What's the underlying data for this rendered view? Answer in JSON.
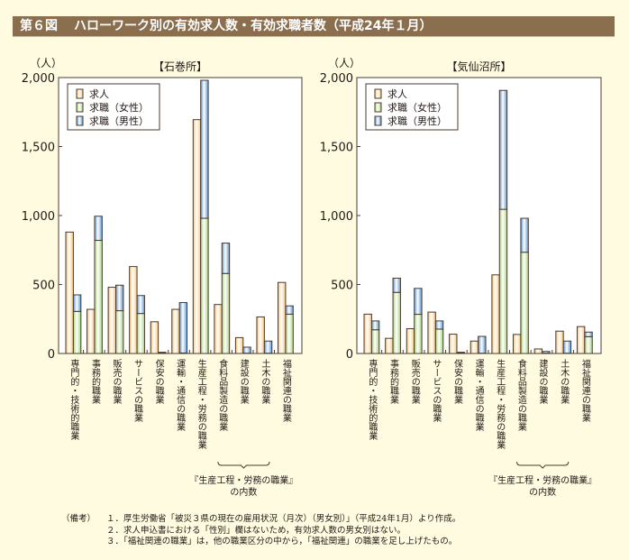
{
  "header": {
    "figure_no": "第６図",
    "title": "ハローワーク別の有効求人数・有効求職者数（平成24年１月）"
  },
  "colors": {
    "header_bg": "#8a6e4e",
    "jobs": "#fbc77a",
    "female": "#a9d67c",
    "male": "#5b97d4"
  },
  "chart_data": [
    {
      "type": "bar",
      "stacked_series": [
        "求職（女性）",
        "求職（男性）"
      ],
      "title": "【石巻所】",
      "ylabel": "（人）",
      "ylim": [
        0,
        2000
      ],
      "yticks": [
        "0",
        "500",
        "1,000",
        "1,500",
        "2,000"
      ],
      "legend": [
        "求人",
        "求職（女性）",
        "求職（男性）"
      ],
      "legend_position": "top-left",
      "categories": [
        "専門的・技術的職業",
        "事務的職業",
        "販売の職業",
        "サービスの職業",
        "保安の職業",
        "運輸・通信の職業",
        "生産工程・労務の職業",
        "食料品製造の職業",
        "建設の職業",
        "土木の職業",
        "福祉関連の職業"
      ],
      "series": [
        {
          "name": "求人",
          "values": [
            880,
            320,
            480,
            630,
            230,
            320,
            1695,
            355,
            115,
            265,
            515
          ]
        },
        {
          "name": "求職（女性）",
          "values": [
            305,
            820,
            310,
            290,
            3,
            4,
            980,
            580,
            2,
            2,
            285
          ]
        },
        {
          "name": "求職（男性）",
          "values": [
            120,
            175,
            185,
            130,
            6,
            365,
            1000,
            220,
            44,
            88,
            60
          ]
        }
      ],
      "brace_label": [
        "『生産工程・労務の職業』",
        "の内数"
      ]
    },
    {
      "type": "bar",
      "stacked_series": [
        "求職（女性）",
        "求職（男性）"
      ],
      "title": "【気仙沼所】",
      "ylabel": "（人）",
      "ylim": [
        0,
        2000
      ],
      "yticks": [
        "0",
        "500",
        "1,000",
        "1,500",
        "2,000"
      ],
      "legend": [
        "求人",
        "求職（女性）",
        "求職（男性）"
      ],
      "legend_position": "top-left",
      "categories": [
        "専門的・技術的職業",
        "事務的職業",
        "販売の職業",
        "サービスの職業",
        "保安の職業",
        "運輸・通信の職業",
        "生産工程・労務の職業",
        "食料品製造の職業",
        "建設の職業",
        "土木の職業",
        "福祉関連の職業"
      ],
      "series": [
        {
          "name": "求人",
          "values": [
            285,
            110,
            180,
            300,
            140,
            90,
            570,
            138,
            33,
            162,
            195
          ]
        },
        {
          "name": "求職（女性）",
          "values": [
            172,
            443,
            284,
            177,
            3,
            2,
            1045,
            734,
            3,
            2,
            122
          ]
        },
        {
          "name": "求職（男性）",
          "values": [
            64,
            103,
            188,
            59,
            6,
            122,
            862,
            246,
            12,
            88,
            33
          ]
        }
      ],
      "brace_label": [
        "『生産工程・労務の職業』",
        "の内数"
      ]
    }
  ],
  "notes": {
    "label": "（備考）",
    "items": [
      "１．厚生労働省「被災３県の現在の雇用状況（月次）（男女別）」（平成24年1月）より作成。",
      "２．求人申込書における「性別」欄はないため，有効求人数の男女別はない。",
      "３．「福祉関連の職業」は，他の職業区分の中から，「福祉関連」の職業を足し上げたもの。"
    ]
  }
}
